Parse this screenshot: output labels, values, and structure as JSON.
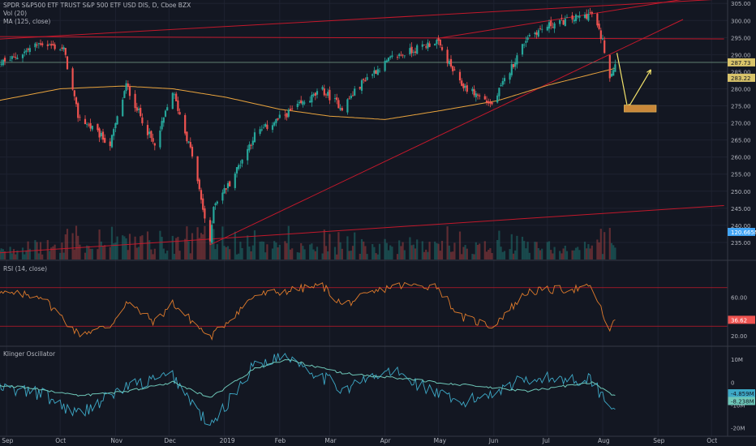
{
  "header": {
    "title": "SPDR S&P500 ETF TRUST S&P 500 ETF USD DIS, D, Cboe BZX",
    "vol_label": "Vol (20)",
    "ma_label": "MA (125, close)",
    "rsi_label": "RSI (14, close)",
    "klinger_label": "Klinger Oscillator"
  },
  "colors": {
    "background": "#131722",
    "up": "#26a69a",
    "down": "#ef5350",
    "ma": "#e8a33d",
    "trend": "#c2182b",
    "rsi": "#e07b2b",
    "klinger": "#3da9c7",
    "klinger_signal": "#6ec7b8",
    "arrow": "#f3e26b",
    "target_box": "#c9883a",
    "price_tag": "#d9c46a",
    "volume_tag": "#42a5f5"
  },
  "chart_data": [
    {
      "type": "candlestick",
      "title": "SPDR S&P500 ETF TRUST S&P 500 ETF USD DIS, D, Cboe BZX",
      "xlabel": "",
      "ylabel": "",
      "x_ticks": [
        "Sep",
        "Oct",
        "Nov",
        "Dec",
        "2019",
        "Feb",
        "Mar",
        "Apr",
        "May",
        "Jun",
        "Jul",
        "Aug",
        "Sep",
        "Oct"
      ],
      "ylim": [
        230,
        306
      ],
      "y_ticks": [
        235,
        240,
        245,
        250,
        255,
        260,
        265,
        270,
        275,
        280,
        285,
        290,
        295,
        300,
        305
      ],
      "ma_name": "MA (125, close)",
      "anchors": [
        {
          "date": "2018-08-22",
          "close": 286.2
        },
        {
          "date": "2018-09-05",
          "close": 289.0
        },
        {
          "date": "2018-09-20",
          "close": 293.5
        },
        {
          "date": "2018-10-03",
          "close": 291.5
        },
        {
          "date": "2018-10-11",
          "close": 272.0
        },
        {
          "date": "2018-10-29",
          "close": 263.7
        },
        {
          "date": "2018-11-07",
          "close": 281.0
        },
        {
          "date": "2018-11-23",
          "close": 263.0
        },
        {
          "date": "2018-12-03",
          "close": 279.3
        },
        {
          "date": "2018-12-14",
          "close": 260.5
        },
        {
          "date": "2018-12-24",
          "close": 234.3
        },
        {
          "date": "2018-12-26",
          "close": 246.2
        },
        {
          "date": "2019-01-04",
          "close": 252.4
        },
        {
          "date": "2019-01-18",
          "close": 266.5
        },
        {
          "date": "2019-02-05",
          "close": 272.7
        },
        {
          "date": "2019-02-25",
          "close": 279.5
        },
        {
          "date": "2019-03-08",
          "close": 274.5
        },
        {
          "date": "2019-03-21",
          "close": 283.0
        },
        {
          "date": "2019-04-05",
          "close": 289.0
        },
        {
          "date": "2019-04-30",
          "close": 294.0
        },
        {
          "date": "2019-05-13",
          "close": 281.5
        },
        {
          "date": "2019-05-31",
          "close": 275.3
        },
        {
          "date": "2019-06-20",
          "close": 295.5
        },
        {
          "date": "2019-07-03",
          "close": 298.8
        },
        {
          "date": "2019-07-26",
          "close": 302.0
        },
        {
          "date": "2019-08-01",
          "close": 294.0
        },
        {
          "date": "2019-08-05",
          "close": 283.8
        },
        {
          "date": "2019-08-08",
          "close": 287.5
        }
      ],
      "ma_anchors": [
        {
          "date": "2018-08-22",
          "value": 276.0
        },
        {
          "date": "2018-10-01",
          "value": 280.0
        },
        {
          "date": "2018-11-05",
          "value": 280.8
        },
        {
          "date": "2018-12-03",
          "value": 280.0
        },
        {
          "date": "2019-01-02",
          "value": 277.5
        },
        {
          "date": "2019-02-01",
          "value": 274.0
        },
        {
          "date": "2019-03-01",
          "value": 272.0
        },
        {
          "date": "2019-04-01",
          "value": 271.0
        },
        {
          "date": "2019-05-01",
          "value": 273.5
        },
        {
          "date": "2019-06-03",
          "value": 276.5
        },
        {
          "date": "2019-07-01",
          "value": 281.0
        },
        {
          "date": "2019-08-08",
          "value": 286.0
        }
      ],
      "trendlines": [
        {
          "from": {
            "date": "2018-08-15",
            "value": 294.2
          },
          "to": {
            "date": "2019-10-08",
            "value": 306.3
          }
        },
        {
          "from": {
            "date": "2018-08-15",
            "value": 295.3
          },
          "to": {
            "date": "2019-10-08",
            "value": 294.6
          }
        },
        {
          "from": {
            "date": "2018-08-15",
            "value": 231.5
          },
          "to": {
            "date": "2019-10-08",
            "value": 245.8
          }
        },
        {
          "from": {
            "date": "2018-12-24",
            "value": 234.3
          },
          "to": {
            "date": "2019-09-15",
            "value": 300.3
          }
        },
        {
          "from": {
            "date": "2019-05-01",
            "value": 294.8
          },
          "to": {
            "date": "2019-09-15",
            "value": 306.2
          }
        }
      ],
      "horizontal_level": 287.73,
      "projection": [
        {
          "date": "2019-08-09",
          "value": 290.5
        },
        {
          "date": "2019-08-15",
          "value": 274.2
        },
        {
          "date": "2019-08-28",
          "value": 285.6
        }
      ],
      "target_zone": {
        "from": "2019-08-13",
        "to": "2019-08-31",
        "low": 273.2,
        "high": 275.2
      },
      "price_tags": [
        "287.73",
        "283.22"
      ],
      "volume_tag": "120.665M"
    },
    {
      "type": "line",
      "title": "RSI (14, close)",
      "xlabel": "",
      "ylabel": "",
      "ylim": [
        10,
        90
      ],
      "y_ticks": [
        20.0,
        60.0
      ],
      "levels": [
        70,
        30
      ],
      "series": [
        {
          "name": "RSI (14, close)",
          "anchors": [
            {
              "date": "2018-08-22",
              "value": 64
            },
            {
              "date": "2018-09-20",
              "value": 62
            },
            {
              "date": "2018-10-11",
              "value": 22
            },
            {
              "date": "2018-10-29",
              "value": 30
            },
            {
              "date": "2018-11-07",
              "value": 55
            },
            {
              "date": "2018-11-23",
              "value": 34
            },
            {
              "date": "2018-12-03",
              "value": 54
            },
            {
              "date": "2018-12-24",
              "value": 18
            },
            {
              "date": "2019-01-18",
              "value": 62
            },
            {
              "date": "2019-02-25",
              "value": 72
            },
            {
              "date": "2019-03-08",
              "value": 52
            },
            {
              "date": "2019-04-05",
              "value": 72
            },
            {
              "date": "2019-04-30",
              "value": 72
            },
            {
              "date": "2019-05-13",
              "value": 40
            },
            {
              "date": "2019-05-31",
              "value": 30
            },
            {
              "date": "2019-06-20",
              "value": 66
            },
            {
              "date": "2019-07-26",
              "value": 70
            },
            {
              "date": "2019-08-05",
              "value": 25
            },
            {
              "date": "2019-08-08",
              "value": 36
            }
          ]
        }
      ],
      "value_tag": "36.62"
    },
    {
      "type": "line",
      "title": "Klinger Oscillator",
      "xlabel": "",
      "ylabel": "",
      "ylim": [
        -23,
        14
      ],
      "y_ticks": [
        "10M",
        "0",
        "-10M",
        "-20M"
      ],
      "series": [
        {
          "name": "",
          "anchors": [
            {
              "date": "2018-08-22",
              "value": -2
            },
            {
              "date": "2018-09-20",
              "value": -5
            },
            {
              "date": "2018-10-11",
              "value": -14
            },
            {
              "date": "2018-11-07",
              "value": -2
            },
            {
              "date": "2018-12-03",
              "value": 3
            },
            {
              "date": "2018-12-24",
              "value": -20
            },
            {
              "date": "2019-01-18",
              "value": 8
            },
            {
              "date": "2019-02-05",
              "value": 12
            },
            {
              "date": "2019-03-08",
              "value": -3
            },
            {
              "date": "2019-04-05",
              "value": 5
            },
            {
              "date": "2019-05-13",
              "value": -10
            },
            {
              "date": "2019-06-20",
              "value": 2
            },
            {
              "date": "2019-07-26",
              "value": 1
            },
            {
              "date": "2019-08-05",
              "value": -11
            },
            {
              "date": "2019-08-08",
              "value": -9
            }
          ]
        },
        {
          "name": "",
          "anchors": [
            {
              "date": "2018-08-22",
              "value": -1
            },
            {
              "date": "2018-09-20",
              "value": -3
            },
            {
              "date": "2018-10-11",
              "value": -6
            },
            {
              "date": "2018-11-07",
              "value": -4
            },
            {
              "date": "2018-12-03",
              "value": 0
            },
            {
              "date": "2018-12-24",
              "value": -7
            },
            {
              "date": "2019-01-18",
              "value": 6
            },
            {
              "date": "2019-02-05",
              "value": 10
            },
            {
              "date": "2019-03-08",
              "value": 4
            },
            {
              "date": "2019-04-05",
              "value": 2
            },
            {
              "date": "2019-05-13",
              "value": -1
            },
            {
              "date": "2019-06-20",
              "value": -4
            },
            {
              "date": "2019-07-26",
              "value": 0
            },
            {
              "date": "2019-08-05",
              "value": -5
            },
            {
              "date": "2019-08-08",
              "value": -6
            }
          ]
        }
      ],
      "value_tags": [
        "-4.859M",
        "-8.238M"
      ]
    }
  ]
}
